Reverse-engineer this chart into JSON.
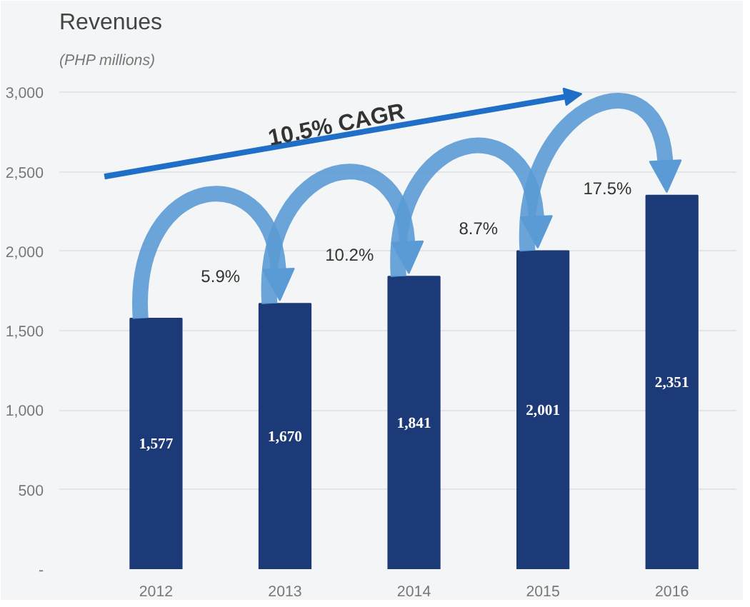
{
  "chart_data": {
    "type": "bar",
    "title": "Revenues",
    "subtitle": "(PHP millions)",
    "categories": [
      "2012",
      "2013",
      "2014",
      "2015",
      "2016"
    ],
    "values": [
      1577,
      1670,
      1841,
      2001,
      2351
    ],
    "value_labels": [
      "1,577",
      "1,670",
      "1,841",
      "2,001",
      "2,351"
    ],
    "color": "#1c3a78",
    "ylim": [
      0,
      3100
    ],
    "yticks": [
      {
        "value": 0,
        "label": "-"
      },
      {
        "value": 500,
        "label": "500"
      },
      {
        "value": 1000,
        "label": "1,000"
      },
      {
        "value": 1500,
        "label": "1,500"
      },
      {
        "value": 2000,
        "label": "2,000"
      },
      {
        "value": 2500,
        "label": "2,500"
      },
      {
        "value": 3000,
        "label": "3,000"
      }
    ],
    "grid": "y",
    "annotations": [
      "10.5% CAGR",
      "5.9%",
      "10.2%",
      "8.7%",
      "17.5%"
    ]
  }
}
